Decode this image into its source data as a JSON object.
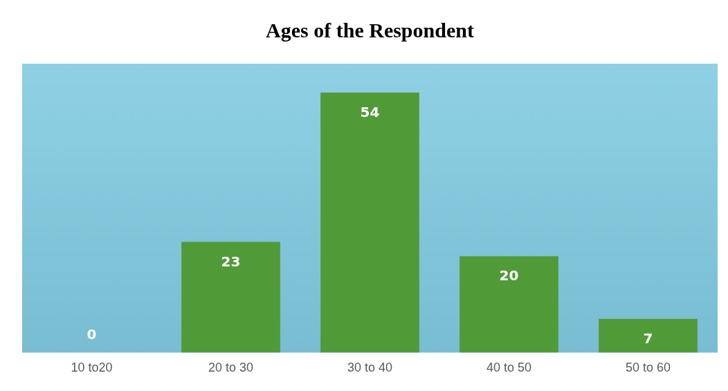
{
  "chart_data": {
    "type": "bar",
    "title": "Ages of the Respondent",
    "categories": [
      "10 to20",
      "20 to 30",
      "30 to 40",
      "40 to 50",
      "50 to 60"
    ],
    "values": [
      0,
      23,
      54,
      20,
      7
    ],
    "color": "#509b38",
    "data_labels": true,
    "grid": false,
    "legend": false
  }
}
